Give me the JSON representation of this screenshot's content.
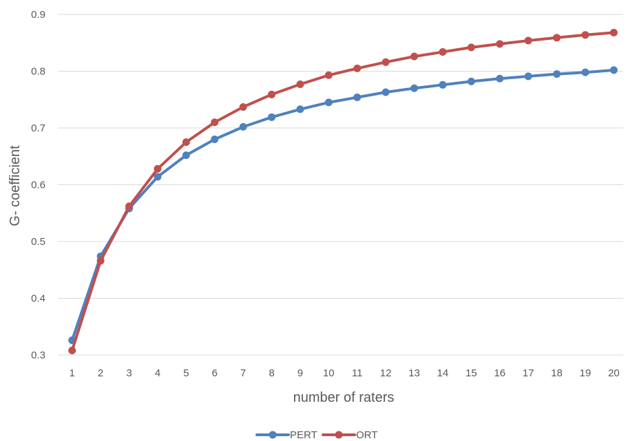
{
  "chart_data": {
    "type": "line",
    "title": "",
    "xlabel": "number of raters",
    "ylabel": "G- coefficient",
    "x": [
      1,
      2,
      3,
      4,
      5,
      6,
      7,
      8,
      9,
      10,
      11,
      12,
      13,
      14,
      15,
      16,
      17,
      18,
      19,
      20
    ],
    "x_tick_labels": [
      "1",
      "2",
      "3",
      "4",
      "5",
      "6",
      "7",
      "8",
      "9",
      "10",
      "11",
      "12",
      "13",
      "14",
      "15",
      "16",
      "17",
      "18",
      "19",
      "20"
    ],
    "ylim": [
      0.3,
      0.9
    ],
    "y_ticks": [
      0.3,
      0.4,
      0.5,
      0.6,
      0.7,
      0.8,
      0.9
    ],
    "y_tick_labels": [
      "0.3",
      "0.4",
      "0.5",
      "0.6",
      "0.7",
      "0.8",
      "0.9"
    ],
    "grid": true,
    "legend_position": "bottom-center",
    "series": [
      {
        "name": "PERT",
        "color": "#4F81BD",
        "values": [
          0.326,
          0.474,
          0.558,
          0.614,
          0.652,
          0.68,
          0.702,
          0.719,
          0.733,
          0.745,
          0.754,
          0.763,
          0.77,
          0.776,
          0.782,
          0.787,
          0.791,
          0.795,
          0.798,
          0.802
        ]
      },
      {
        "name": "ORT",
        "color": "#C0504D",
        "values": [
          0.308,
          0.466,
          0.562,
          0.628,
          0.675,
          0.71,
          0.737,
          0.759,
          0.777,
          0.793,
          0.805,
          0.816,
          0.826,
          0.834,
          0.842,
          0.848,
          0.854,
          0.859,
          0.864,
          0.868
        ]
      }
    ]
  }
}
